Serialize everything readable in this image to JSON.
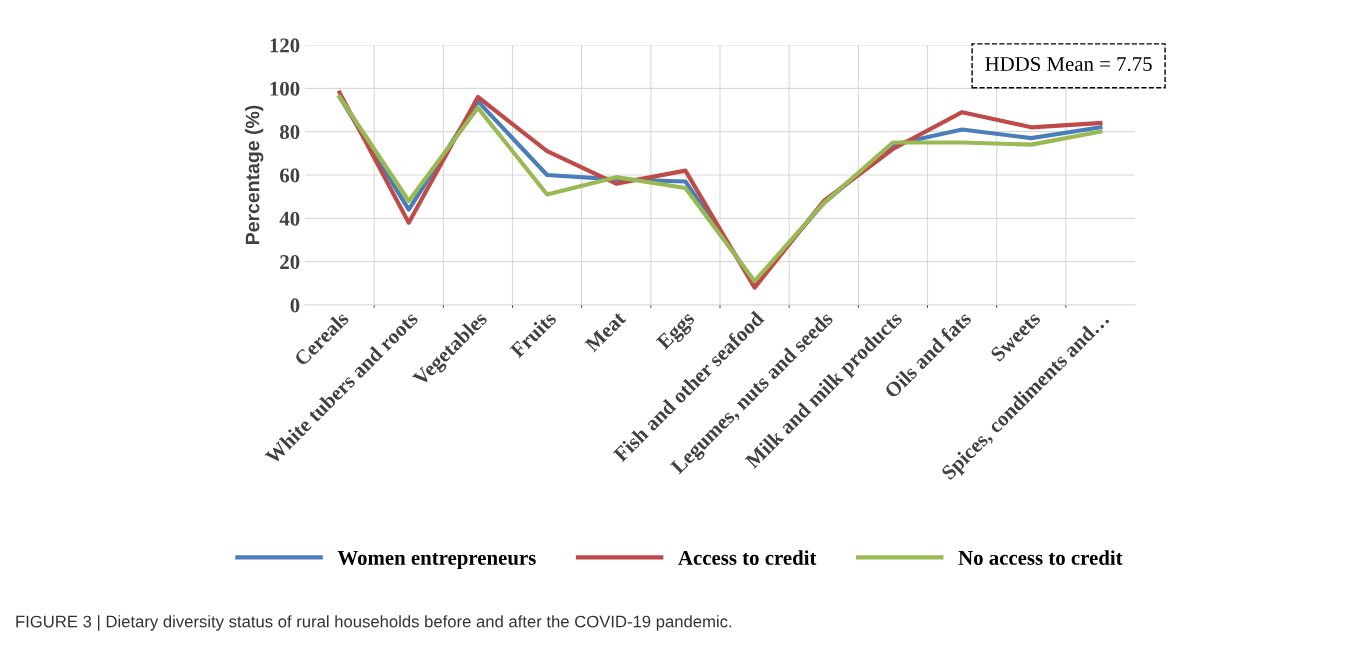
{
  "chart_data": {
    "type": "line",
    "categories": [
      "Cereals",
      "White tubers and roots",
      "Vegetables",
      "Fruits",
      "Meat",
      "Eggs",
      "Fish and other seafood",
      "Legumes, nuts and seeds",
      "Milk and milk products",
      "Oils and fats",
      "Sweets",
      "Spices, condiments and…"
    ],
    "series": [
      {
        "name": "Women entrepreneurs",
        "color": "#4a7ebb",
        "values": [
          96,
          44,
          94,
          60,
          58,
          57,
          10,
          47,
          74,
          81,
          77,
          82
        ]
      },
      {
        "name": "Access to credit",
        "color": "#be4b48",
        "values": [
          98,
          38,
          96,
          71,
          56,
          62,
          8,
          48,
          72,
          89,
          82,
          84
        ]
      },
      {
        "name": "No access to credit",
        "color": "#98b954",
        "values": [
          96,
          48,
          91,
          51,
          59,
          54,
          11,
          47,
          75,
          75,
          74,
          80
        ]
      }
    ],
    "ylabel": "Percentage (%)",
    "ylim": [
      0,
      120
    ],
    "yticks": [
      0,
      20,
      40,
      60,
      80,
      100,
      120
    ],
    "grid": true,
    "legend": "bottom",
    "marker": "none",
    "line_style": "solid",
    "annotations": [
      "HDDS Mean = 7.75",
      "FIGURE 3 | Dietary diversity status of rural households before and after the COVID-19 pandemic."
    ]
  }
}
